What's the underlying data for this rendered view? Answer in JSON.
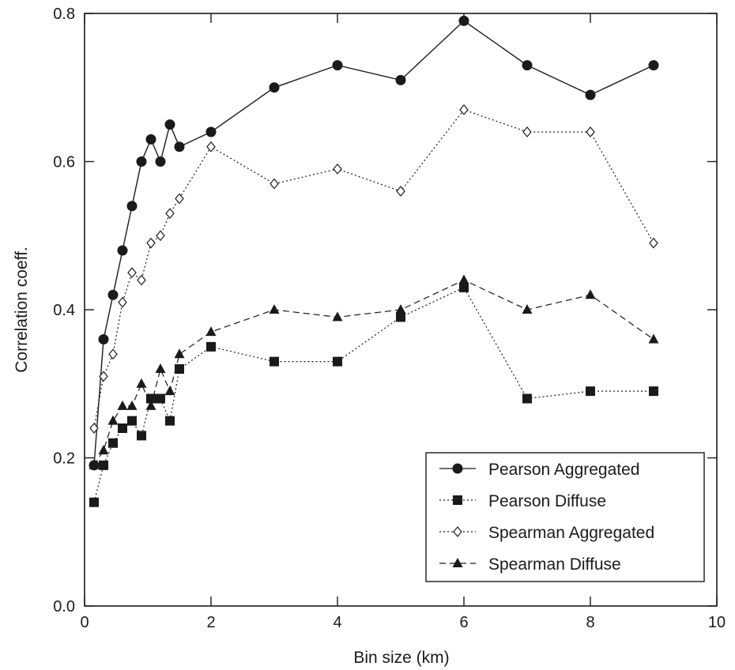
{
  "chart_data": {
    "type": "line",
    "title": "",
    "xlabel": "Bin size (km)",
    "ylabel": "Correlation coeff.",
    "xlim": [
      0,
      10
    ],
    "ylim": [
      0,
      0.8
    ],
    "xticks": [
      0,
      2,
      4,
      6,
      8,
      10
    ],
    "xtick_labels": [
      "0",
      "2",
      "4",
      "6",
      "8",
      "10"
    ],
    "yticks": [
      0,
      0.2,
      0.4,
      0.6,
      0.8
    ],
    "ytick_labels": [
      "0.0",
      "0.2",
      "0.4",
      "0.6",
      "0.8"
    ],
    "grid": false,
    "legend_position": "bottom-right",
    "series": [
      {
        "name": "Pearson Aggregated",
        "marker": "filled-circle",
        "line_style": "solid",
        "color": "#1a1a1a",
        "x": [
          0.15,
          0.3,
          0.45,
          0.6,
          0.75,
          0.9,
          1.05,
          1.2,
          1.35,
          1.5,
          2,
          3,
          4,
          5,
          6,
          7,
          8,
          9
        ],
        "y": [
          0.19,
          0.36,
          0.42,
          0.48,
          0.54,
          0.6,
          0.63,
          0.6,
          0.65,
          0.62,
          0.64,
          0.7,
          0.73,
          0.71,
          0.79,
          0.73,
          0.69,
          0.73
        ]
      },
      {
        "name": "Pearson Diffuse",
        "marker": "filled-square",
        "line_style": "dotted",
        "color": "#1a1a1a",
        "x": [
          0.15,
          0.3,
          0.45,
          0.6,
          0.75,
          0.9,
          1.05,
          1.2,
          1.35,
          1.5,
          2,
          3,
          4,
          5,
          6,
          7,
          8,
          9
        ],
        "y": [
          0.14,
          0.19,
          0.22,
          0.24,
          0.25,
          0.23,
          0.28,
          0.28,
          0.25,
          0.32,
          0.35,
          0.33,
          0.33,
          0.39,
          0.43,
          0.28,
          0.29,
          0.29
        ]
      },
      {
        "name": "Spearman Aggregated",
        "marker": "open-diamond",
        "line_style": "dotted",
        "color": "#1a1a1a",
        "x": [
          0.15,
          0.3,
          0.45,
          0.6,
          0.75,
          0.9,
          1.05,
          1.2,
          1.35,
          1.5,
          2,
          3,
          4,
          5,
          6,
          7,
          8,
          9
        ],
        "y": [
          0.24,
          0.31,
          0.34,
          0.41,
          0.45,
          0.44,
          0.49,
          0.5,
          0.53,
          0.55,
          0.62,
          0.57,
          0.59,
          0.56,
          0.67,
          0.64,
          0.64,
          0.49
        ]
      },
      {
        "name": "Spearman Diffuse",
        "marker": "filled-triangle",
        "line_style": "dashed",
        "color": "#1a1a1a",
        "x": [
          0.15,
          0.3,
          0.45,
          0.6,
          0.75,
          0.9,
          1.05,
          1.2,
          1.35,
          1.5,
          2,
          3,
          4,
          5,
          6,
          7,
          8,
          9
        ],
        "y": [
          0.19,
          0.21,
          0.25,
          0.27,
          0.27,
          0.3,
          0.27,
          0.32,
          0.29,
          0.34,
          0.37,
          0.4,
          0.39,
          0.4,
          0.44,
          0.4,
          0.42,
          0.36
        ]
      }
    ]
  }
}
